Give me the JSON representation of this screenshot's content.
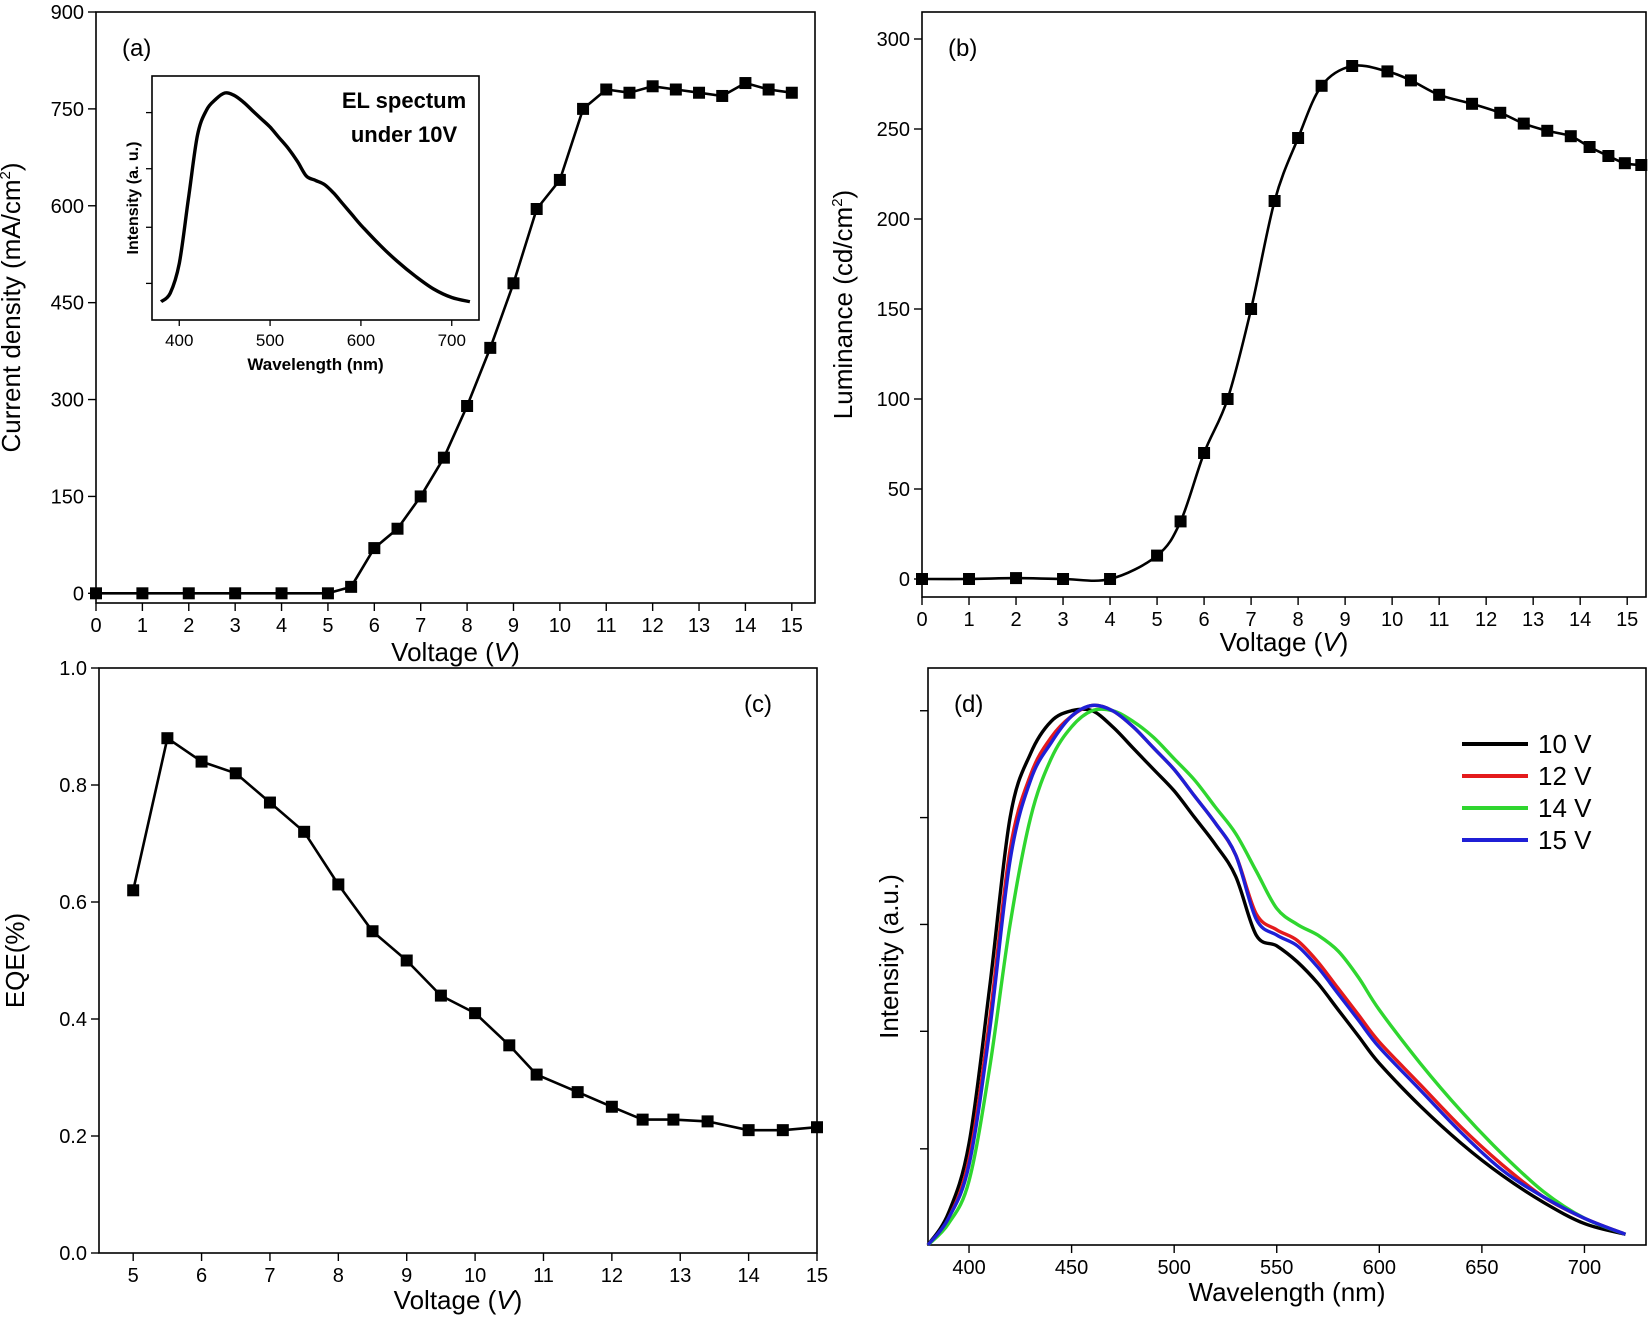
{
  "chart_data": [
    {
      "id": "a",
      "type": "line",
      "panel_label": "(a)",
      "xlabel": "Voltage (",
      "xlabel_var": "V",
      "xlabel_end": ")",
      "ylabel": "Current density (mA/cm",
      "ylabel_sup": "2",
      "ylabel_end": ")",
      "xlim": [
        0,
        15.5
      ],
      "ylim": [
        -15,
        900
      ],
      "xticks": [
        0,
        1,
        2,
        3,
        4,
        5,
        6,
        7,
        8,
        9,
        10,
        11,
        12,
        13,
        14,
        15
      ],
      "yticks": [
        0,
        150,
        300,
        450,
        600,
        750,
        900
      ],
      "series": [
        {
          "name": "Current density",
          "color": "#000000",
          "x": [
            0,
            1,
            2,
            3,
            4,
            5,
            5.5,
            6,
            6.5,
            7,
            7.5,
            8,
            8.5,
            9,
            9.5,
            10,
            10.5,
            11,
            11.5,
            12,
            12.5,
            13,
            13.5,
            14,
            14.5,
            15
          ],
          "y": [
            0,
            0,
            0,
            0,
            0,
            0,
            10,
            70,
            100,
            150,
            210,
            290,
            380,
            480,
            595,
            640,
            750,
            780,
            775,
            785,
            780,
            775,
            770,
            790,
            780,
            775
          ]
        }
      ],
      "inset": {
        "type": "line",
        "title_line1": "EL spectum",
        "title_line2": "under 10V",
        "xlabel": "Wavelength (nm)",
        "ylabel": "Intensity (a. u.)",
        "xlim": [
          370,
          730
        ],
        "ylim": [
          0,
          1.08
        ],
        "xticks": [
          400,
          500,
          600,
          700
        ],
        "series": [
          {
            "name": "EL 10V",
            "x": [
              380,
              390,
              400,
              410,
              420,
              430,
              440,
              450,
              460,
              470,
              480,
              490,
              500,
              510,
              520,
              530,
              540,
              550,
              560,
              570,
              580,
              590,
              600,
              620,
              640,
              660,
              680,
              700,
              720
            ],
            "y": [
              0.02,
              0.06,
              0.2,
              0.5,
              0.8,
              0.92,
              0.97,
              1.0,
              0.99,
              0.96,
              0.92,
              0.88,
              0.84,
              0.79,
              0.74,
              0.68,
              0.61,
              0.59,
              0.57,
              0.53,
              0.48,
              0.43,
              0.38,
              0.29,
              0.21,
              0.14,
              0.08,
              0.04,
              0.02
            ]
          }
        ]
      }
    },
    {
      "id": "b",
      "type": "line",
      "panel_label": "(b)",
      "xlabel": "Voltage (",
      "xlabel_var": "V",
      "xlabel_end": ")",
      "ylabel": "Luminance (cd/cm",
      "ylabel_sup": "2",
      "ylabel_end": ")",
      "xlim": [
        0,
        15.4
      ],
      "ylim": [
        -10,
        315
      ],
      "xticks": [
        0,
        1,
        2,
        3,
        4,
        5,
        6,
        7,
        8,
        9,
        10,
        11,
        12,
        13,
        14,
        15
      ],
      "yticks": [
        0,
        50,
        100,
        150,
        200,
        250,
        300
      ],
      "series": [
        {
          "name": "Luminance",
          "color": "#000000",
          "x": [
            0,
            1,
            2,
            3,
            4,
            5,
            5.5,
            6,
            6.5,
            7,
            7.5,
            8,
            8.5,
            9.15,
            9.9,
            10.4,
            11,
            11.7,
            12.3,
            12.8,
            13.3,
            13.8,
            14.2,
            14.6,
            14.95,
            15.3
          ],
          "y": [
            0,
            0,
            0.5,
            0,
            0,
            13,
            32,
            70,
            100,
            150,
            210,
            245,
            274,
            285,
            282,
            277,
            269,
            264,
            259,
            253,
            249,
            246,
            240,
            235,
            231,
            230
          ]
        }
      ]
    },
    {
      "id": "c",
      "type": "line",
      "panel_label": "(c)",
      "xlabel": "Voltage (",
      "xlabel_var": "V",
      "xlabel_end": ")",
      "ylabel": "EQE(%)",
      "xlim": [
        4.5,
        15
      ],
      "ylim": [
        0,
        1.0
      ],
      "xticks": [
        5,
        6,
        7,
        8,
        9,
        10,
        11,
        12,
        13,
        14,
        15
      ],
      "yticks": [
        0.0,
        0.2,
        0.4,
        0.6,
        0.8,
        1.0
      ],
      "ytick_labels": [
        "0.0",
        "0.2",
        "0.4",
        "0.6",
        "0.8",
        "1.0"
      ],
      "series": [
        {
          "name": "EQE",
          "color": "#000000",
          "x": [
            5,
            5.5,
            6,
            6.5,
            7,
            7.5,
            8,
            8.5,
            9,
            9.5,
            10,
            10.5,
            10.9,
            11.5,
            12,
            12.45,
            12.9,
            13.4,
            14,
            14.5,
            15
          ],
          "y": [
            0.62,
            0.88,
            0.84,
            0.82,
            0.77,
            0.72,
            0.63,
            0.55,
            0.5,
            0.44,
            0.41,
            0.355,
            0.305,
            0.275,
            0.25,
            0.228,
            0.228,
            0.225,
            0.21,
            0.21,
            0.215
          ]
        }
      ]
    },
    {
      "id": "d",
      "type": "line",
      "panel_label": "(d)",
      "xlabel": "Wavelength (nm)",
      "ylabel": "Intensity (a.u.)",
      "xlim": [
        380,
        730
      ],
      "ylim": [
        0,
        1.08
      ],
      "xticks": [
        400,
        450,
        500,
        550,
        600,
        650,
        700
      ],
      "ytick_values": [
        0.18,
        0.4,
        0.6,
        0.8,
        1.0
      ],
      "legend_position": "top-right",
      "series": [
        {
          "name": "10 V",
          "color": "#000000",
          "x": [
            380,
            390,
            400,
            410,
            420,
            430,
            440,
            450,
            460,
            470,
            480,
            490,
            500,
            510,
            520,
            530,
            540,
            550,
            560,
            570,
            580,
            590,
            600,
            620,
            640,
            660,
            680,
            700,
            720
          ],
          "y": [
            0.0,
            0.06,
            0.19,
            0.48,
            0.8,
            0.92,
            0.98,
            1.0,
            1.0,
            0.97,
            0.93,
            0.89,
            0.85,
            0.8,
            0.75,
            0.69,
            0.58,
            0.56,
            0.53,
            0.49,
            0.44,
            0.39,
            0.34,
            0.26,
            0.19,
            0.13,
            0.08,
            0.04,
            0.02
          ]
        },
        {
          "name": "12 V",
          "color": "#e41a1c",
          "x": [
            380,
            390,
            400,
            410,
            420,
            430,
            440,
            450,
            460,
            470,
            480,
            490,
            500,
            510,
            520,
            530,
            540,
            550,
            560,
            570,
            580,
            590,
            600,
            620,
            640,
            660,
            680,
            700,
            720
          ],
          "y": [
            0.0,
            0.05,
            0.16,
            0.42,
            0.74,
            0.88,
            0.95,
            0.99,
            1.01,
            1.0,
            0.97,
            0.93,
            0.89,
            0.84,
            0.79,
            0.73,
            0.62,
            0.59,
            0.57,
            0.53,
            0.48,
            0.43,
            0.38,
            0.3,
            0.22,
            0.15,
            0.09,
            0.05,
            0.02
          ]
        },
        {
          "name": "14 V",
          "color": "#2fd62f",
          "x": [
            380,
            390,
            400,
            410,
            420,
            430,
            440,
            450,
            460,
            470,
            480,
            490,
            500,
            510,
            520,
            530,
            540,
            550,
            560,
            570,
            580,
            590,
            600,
            620,
            640,
            660,
            680,
            700,
            720
          ],
          "y": [
            0.0,
            0.04,
            0.12,
            0.33,
            0.6,
            0.8,
            0.91,
            0.97,
            1.0,
            1.0,
            0.98,
            0.95,
            0.91,
            0.87,
            0.82,
            0.77,
            0.7,
            0.63,
            0.6,
            0.58,
            0.55,
            0.5,
            0.44,
            0.34,
            0.25,
            0.17,
            0.1,
            0.05,
            0.02
          ]
        },
        {
          "name": "15 V",
          "color": "#1f1fd6",
          "x": [
            380,
            390,
            400,
            410,
            420,
            430,
            440,
            450,
            460,
            470,
            480,
            490,
            500,
            510,
            520,
            530,
            540,
            550,
            560,
            570,
            580,
            590,
            600,
            620,
            640,
            660,
            680,
            700,
            720
          ],
          "y": [
            0.0,
            0.05,
            0.15,
            0.4,
            0.72,
            0.87,
            0.94,
            0.99,
            1.01,
            1.0,
            0.97,
            0.93,
            0.89,
            0.84,
            0.79,
            0.73,
            0.61,
            0.58,
            0.56,
            0.52,
            0.47,
            0.42,
            0.37,
            0.29,
            0.21,
            0.14,
            0.09,
            0.05,
            0.02
          ]
        }
      ]
    }
  ]
}
